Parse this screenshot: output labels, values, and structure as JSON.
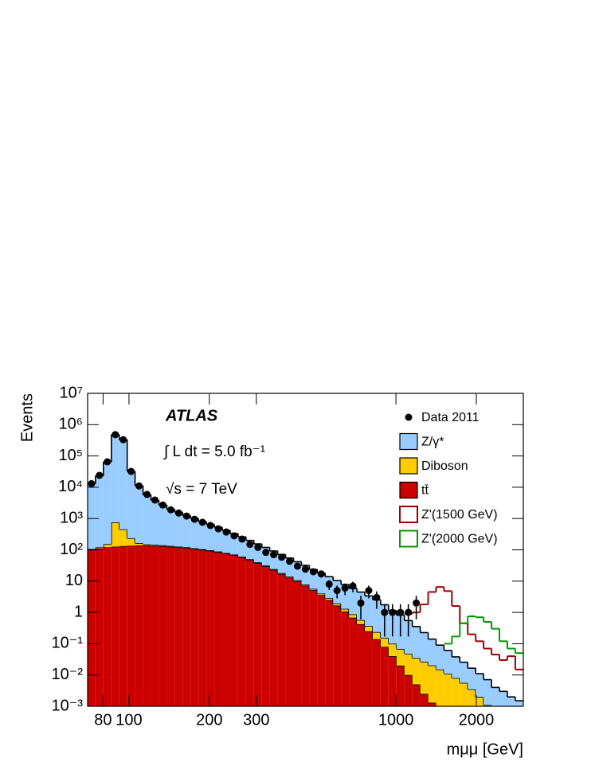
{
  "chart_data": {
    "type": "histogram",
    "x_label": "mμμ [GeV]",
    "y_label": "Events",
    "annotations": [
      "ATLAS",
      "∫ L dt = 5.0 fb⁻¹",
      "√s = 7 TeV"
    ],
    "xscale": "log",
    "yscale": "log",
    "xlim": [
      70,
      3000
    ],
    "ylim": [
      0.001,
      10000000
    ],
    "xticks": [
      80,
      100,
      200,
      300,
      1000,
      2000
    ],
    "yticks": [
      {
        "value": 10000000,
        "label": "10⁷"
      },
      {
        "value": 1000000,
        "label": "10⁶"
      },
      {
        "value": 100000,
        "label": "10⁵"
      },
      {
        "value": 10000,
        "label": "10⁴"
      },
      {
        "value": 1000,
        "label": "10³"
      },
      {
        "value": 100,
        "label": "10²"
      },
      10,
      1,
      {
        "value": 0.1,
        "label": "10⁻¹"
      },
      {
        "value": 0.01,
        "label": "10⁻²"
      },
      {
        "value": 0.001,
        "label": "10⁻³"
      }
    ],
    "legend": "upper right",
    "bins": [
      70,
      74.9,
      80.2,
      85.9,
      92.0,
      98.5,
      105.4,
      112.9,
      120.9,
      129.4,
      138.6,
      148.4,
      158.9,
      170.1,
      182.1,
      195.0,
      208.8,
      223.6,
      239.4,
      256.3,
      274.4,
      293.8,
      314.6,
      336.8,
      360.6,
      386.1,
      413.4,
      442.6,
      473.9,
      507.4,
      543.3,
      581.7,
      622.8,
      666.8,
      714.0,
      764.4,
      818.5,
      876.3,
      938.3,
      1004.6,
      1075.6,
      1151.7,
      1233.1,
      1320.3,
      1413.6,
      1513.5,
      1620.5,
      1735.1,
      1857.7,
      1989.1,
      2129.7,
      2280.3,
      2441.5,
      2614.1,
      2798.9,
      2996.8
    ],
    "data": {
      "name": "Data 2011",
      "color": "#000000",
      "values": [
        13000,
        24000,
        65000,
        480000,
        330000,
        32000,
        11000,
        5900,
        3900,
        2700,
        1900,
        1500,
        1200,
        950,
        760,
        600,
        470,
        370,
        280,
        220,
        150,
        120,
        83,
        70,
        58,
        43,
        30,
        24,
        20,
        17,
        8,
        5,
        6,
        7,
        2,
        5,
        3,
        1,
        1,
        1,
        1,
        2,
        null,
        null,
        null,
        null,
        null,
        null,
        null,
        null,
        null,
        null,
        null,
        null,
        null
      ],
      "errors": [
        114,
        155,
        255,
        693,
        574,
        179,
        105,
        77,
        62,
        52,
        44,
        39,
        35,
        31,
        28,
        24,
        22,
        19,
        17,
        15,
        12,
        11,
        9.1,
        8.4,
        7.6,
        6.6,
        5.5,
        4.9,
        4.5,
        4.1,
        2.8,
        2.2,
        2.4,
        2.6,
        1.4,
        2.2,
        1.7,
        0.83,
        0.83,
        0.83,
        0.83,
        1.4,
        null,
        null,
        null,
        null,
        null,
        null,
        null,
        null,
        null,
        null,
        null,
        null,
        null
      ]
    },
    "series": [
      {
        "name": "Z/γ*",
        "color": "#99ccff",
        "stacked": true,
        "values": [
          12900,
          23000,
          64000,
          480000,
          330000,
          32000,
          11000,
          5600,
          3700,
          2600,
          1850,
          1450,
          1120,
          900,
          700,
          560,
          440,
          340,
          260,
          200,
          150,
          115,
          88,
          68,
          53,
          41,
          31,
          24,
          18,
          14,
          11,
          8.5,
          6.5,
          5,
          3.9,
          3.0,
          2.3,
          1.6,
          1.05,
          0.75,
          0.5,
          0.32,
          0.2,
          0.12,
          0.075,
          0.05,
          0.03,
          0.02,
          0.013,
          0.009,
          0.006,
          0.004,
          0.003,
          0.002,
          0.0015
        ]
      },
      {
        "name": "Diboson",
        "color": "#ffcc00",
        "stacked": true,
        "values": [
          6.3,
          10,
          32,
          630,
          320,
          100,
          25,
          12.6,
          8.9,
          7.9,
          7.1,
          6.3,
          5.6,
          5.0,
          4.5,
          4.0,
          3.5,
          3.2,
          2.8,
          2.4,
          2.1,
          1.8,
          1.5,
          1.26,
          1.05,
          0.87,
          0.72,
          0.6,
          0.5,
          0.42,
          0.35,
          0.28,
          0.23,
          0.19,
          0.15,
          0.12,
          0.095,
          0.076,
          0.06,
          0.048,
          0.038,
          0.03,
          0.024,
          0.019,
          0.015,
          0.011,
          0.008,
          0.0056,
          0.0035,
          0.002,
          0.0011,
          0,
          0,
          0,
          0
        ]
      },
      {
        "name": "tt̄",
        "color": "#cc0000",
        "stacked": true,
        "values": [
          100,
          110,
          120,
          126,
          132,
          135,
          138,
          138,
          135,
          132,
          126,
          120,
          115,
          107,
          100,
          93,
          85,
          76,
          68,
          58,
          48,
          38,
          30,
          23,
          17,
          13,
          10,
          7.2,
          5.2,
          3.6,
          2.5,
          1.66,
          1.07,
          0.68,
          0.42,
          0.25,
          0.14,
          0.079,
          0.04,
          0.02,
          0.01,
          0.005,
          0.0025,
          0.0013,
          0,
          0,
          0,
          0,
          0,
          0,
          0,
          0,
          0,
          0,
          0
        ]
      },
      {
        "name": "Z'(1500 GeV)",
        "color": "#a00000",
        "stacked": false,
        "values": [
          null,
          null,
          null,
          null,
          null,
          null,
          null,
          null,
          null,
          null,
          null,
          null,
          null,
          null,
          null,
          null,
          null,
          null,
          null,
          null,
          null,
          null,
          null,
          null,
          null,
          null,
          null,
          null,
          null,
          null,
          null,
          null,
          null,
          null,
          null,
          null,
          null,
          null,
          null,
          null,
          0.9,
          1.0,
          1.8,
          4.5,
          6.5,
          4.8,
          1.6,
          0.45,
          0.2,
          0.12,
          0.07,
          0.045,
          0.03,
          0.04,
          0.015
        ]
      },
      {
        "name": "Z'(2000 GeV)",
        "color": "#009900",
        "stacked": false,
        "values": [
          null,
          null,
          null,
          null,
          null,
          null,
          null,
          null,
          null,
          null,
          null,
          null,
          null,
          null,
          null,
          null,
          null,
          null,
          null,
          null,
          null,
          null,
          null,
          null,
          null,
          null,
          null,
          null,
          null,
          null,
          null,
          null,
          null,
          null,
          null,
          null,
          null,
          null,
          null,
          null,
          null,
          null,
          null,
          null,
          null,
          0.1,
          0.17,
          0.45,
          0.75,
          0.7,
          0.5,
          0.3,
          0.12,
          0.07,
          0.05
        ]
      }
    ]
  }
}
